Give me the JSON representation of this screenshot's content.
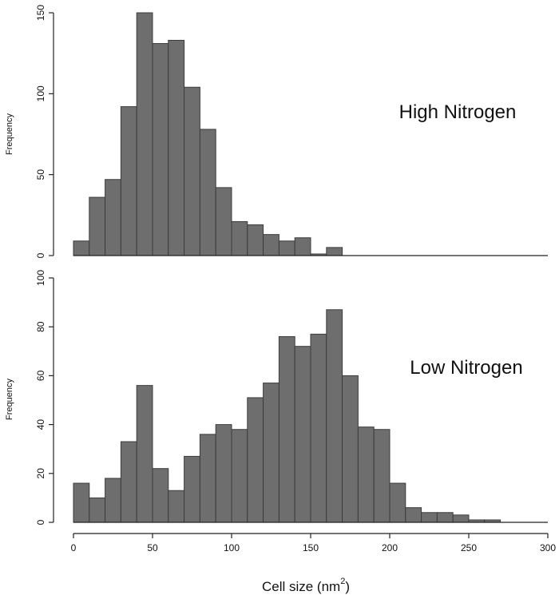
{
  "chart_data": [
    {
      "type": "bar",
      "annotation": "High Nitrogen",
      "ylabel": "Frequency",
      "ylim": [
        0,
        150
      ],
      "yticks": [
        0,
        50,
        100,
        150
      ],
      "xlim": [
        0,
        300
      ],
      "bin_width": 10,
      "bin_edges_start": [
        0,
        10,
        20,
        30,
        40,
        50,
        60,
        70,
        80,
        90,
        100,
        110,
        120,
        130,
        140,
        150,
        160
      ],
      "values": [
        9,
        36,
        47,
        92,
        150,
        131,
        133,
        104,
        78,
        42,
        21,
        19,
        13,
        9,
        11,
        1,
        5
      ]
    },
    {
      "type": "bar",
      "annotation": "Low Nitrogen",
      "ylabel": "Frequency",
      "ylim": [
        0,
        100
      ],
      "yticks": [
        0,
        20,
        40,
        60,
        80,
        100
      ],
      "xlim": [
        0,
        300
      ],
      "bin_width": 10,
      "bin_edges_start": [
        0,
        10,
        20,
        30,
        40,
        50,
        60,
        70,
        80,
        90,
        100,
        110,
        120,
        130,
        140,
        150,
        160,
        170,
        180,
        190,
        200,
        210,
        220,
        230,
        240,
        250,
        260
      ],
      "values": [
        16,
        10,
        18,
        33,
        56,
        22,
        13,
        27,
        36,
        40,
        38,
        51,
        57,
        76,
        72,
        77,
        87,
        60,
        39,
        38,
        16,
        6,
        4,
        4,
        3,
        1,
        1
      ]
    }
  ],
  "x_axis": {
    "label": "Cell size (nm",
    "label_superscript": "2",
    "label_close": ")",
    "ticks": [
      0,
      50,
      100,
      150,
      200,
      250,
      300
    ]
  }
}
